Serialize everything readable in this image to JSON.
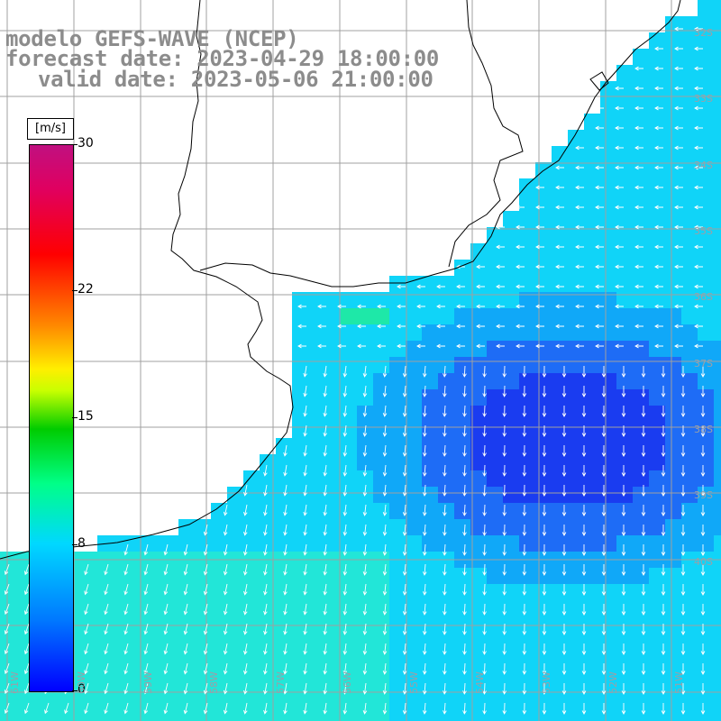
{
  "title": {
    "line1": "modelo GEFS-WAVE (NCEP)",
    "line2": "forecast date: 2023-04-29 18:00:00",
    "line3": "valid date: 2023-05-06 21:00:00"
  },
  "colorbar": {
    "unit": "[m/s]",
    "ticks": [
      "30",
      "22",
      "15",
      "8",
      "0"
    ],
    "tick_values": [
      30,
      22,
      15,
      8,
      0
    ],
    "min": 0,
    "max": 30
  },
  "axes": {
    "lat_labels": [
      "32S",
      "33S",
      "34S",
      "35S",
      "36S",
      "37S",
      "38S",
      "39S",
      "40S"
    ],
    "lon_labels": [
      "61W",
      "60W",
      "59W",
      "58W",
      "57W",
      "56W",
      "55W",
      "54W",
      "53W",
      "52W",
      "51W"
    ]
  },
  "colors": {
    "land": "#ffffff",
    "coastline": "#000000",
    "grid": "#a0a0a0",
    "arrows": "#ffffff",
    "title_text": "#8c8c8c"
  }
}
